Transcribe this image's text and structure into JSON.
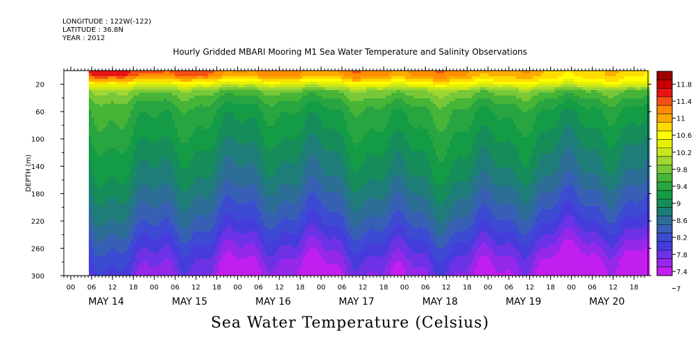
{
  "header": {
    "longitude": "LONGITUDE : 122W(-122)",
    "latitude": "LATITUDE : 36.8N",
    "year": "YEAR : 2012"
  },
  "chart_data": {
    "type": "heatmap",
    "title": "Hourly Gridded MBARI Mooring M1 Sea Water Temperature and Salinity Observations",
    "xlabel": "Sea Water Temperature (Celsius)",
    "ylabel": "DEPTH (m)",
    "ylim": [
      300,
      0
    ],
    "y_ticks": [
      "20",
      "60",
      "100",
      "140",
      "180",
      "220",
      "260",
      "300"
    ],
    "x_hour_labels": [
      "00",
      "06",
      "12",
      "18",
      "00",
      "06",
      "12",
      "18",
      "00",
      "06",
      "12",
      "18",
      "00",
      "06",
      "12",
      "18",
      "00",
      "06",
      "12",
      "18",
      "00",
      "06",
      "12",
      "18",
      "00",
      "06",
      "12",
      "18"
    ],
    "x_day_labels": [
      "MAY 14",
      "MAY 15",
      "MAY 16",
      "MAY 17",
      "MAY 18",
      "MAY 19",
      "MAY 20"
    ],
    "colorbar": {
      "labels": [
        "11.8",
        "11.4",
        "11",
        "10.6",
        "10.2",
        "9.8",
        "9.4",
        "9",
        "8.6",
        "8.2",
        "7.8",
        "7.4",
        "7"
      ],
      "colors": [
        "#9b0000",
        "#c80000",
        "#e61414",
        "#f55014",
        "#ff8c00",
        "#ffaa00",
        "#ffdc00",
        "#ffff00",
        "#e6f000",
        "#c8e61e",
        "#a0d732",
        "#78c837",
        "#46b437",
        "#28a541",
        "#149b46",
        "#168c5a",
        "#1e7d78",
        "#2d6e96",
        "#3760b4",
        "#3c4bd2",
        "#463cdc",
        "#6e32e6",
        "#9628eb",
        "#c31ef0"
      ],
      "min": 7,
      "max": 12
    },
    "values_note": "",
    "profile": {
      "depths": [
        5,
        10,
        15,
        20,
        25,
        30,
        40,
        50,
        60,
        80,
        100,
        120,
        140,
        160,
        180,
        200,
        220,
        240,
        260,
        280,
        300
      ],
      "temps_early": [
        11.3,
        11.0,
        10.6,
        10.2,
        9.9,
        9.6,
        9.4,
        9.25,
        9.15,
        9.05,
        8.95,
        8.8,
        8.7,
        8.6,
        8.45,
        8.3,
        8.15,
        7.95,
        7.75,
        7.55,
        7.4
      ],
      "temps_late": [
        10.7,
        10.6,
        10.5,
        10.3,
        9.9,
        9.6,
        9.4,
        9.25,
        9.1,
        9.0,
        8.85,
        8.75,
        8.65,
        8.5,
        8.3,
        8.15,
        7.95,
        7.7,
        7.45,
        7.2,
        7.05
      ]
    }
  }
}
